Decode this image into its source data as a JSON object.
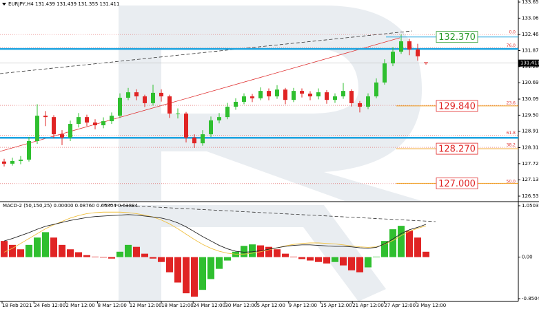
{
  "chart_data": {
    "type": "candlestick",
    "header": "EURJPY,H4  131.439 131.439 131.355 131.411",
    "ylim": [
      126.53,
      133.65
    ],
    "yticks": [
      {
        "value": 133.65,
        "label": "133.650"
      },
      {
        "value": 133.06,
        "label": "133.060"
      },
      {
        "value": 132.46,
        "label": "132.460"
      },
      {
        "value": 131.87,
        "label": "131.870"
      },
      {
        "value": 131.28,
        "label": "131.280"
      },
      {
        "value": 130.69,
        "label": "130.690"
      },
      {
        "value": 130.09,
        "label": "130.090"
      },
      {
        "value": 129.5,
        "label": "129.500"
      },
      {
        "value": 128.91,
        "label": "128.910"
      },
      {
        "value": 128.31,
        "label": "128.310"
      },
      {
        "value": 127.72,
        "label": "127.720"
      },
      {
        "value": 127.13,
        "label": "127.130"
      },
      {
        "value": 126.53,
        "label": "126.530"
      }
    ],
    "x_labels": [
      "18 Feb 2021",
      "24 Feb 12:00",
      "2 Mar 12:00",
      "8 Mar 12:00",
      "12 Mar 12:00",
      "18 Mar 12:00",
      "24 Mar 12:00",
      "30 Mar 12:00",
      "5 Apr 12:00",
      "9 Apr 12:00",
      "15 Apr 12:00",
      "21 Apr 12:00",
      "27 Apr 12:00",
      "3 May 12:00"
    ],
    "up_color": "#2fbf2f",
    "down_color": "#e02424",
    "ohlc": [
      [
        127.8,
        127.9,
        127.62,
        127.72
      ],
      [
        127.72,
        127.94,
        127.65,
        127.82
      ],
      [
        127.82,
        128.0,
        127.7,
        127.87
      ],
      [
        127.87,
        128.7,
        127.8,
        128.55
      ],
      [
        128.55,
        129.9,
        128.45,
        129.48
      ],
      [
        129.48,
        129.65,
        129.1,
        129.43
      ],
      [
        129.43,
        129.5,
        128.65,
        128.8
      ],
      [
        128.8,
        128.95,
        128.4,
        128.68
      ],
      [
        128.68,
        129.3,
        128.55,
        129.18
      ],
      [
        129.18,
        129.58,
        129.05,
        129.43
      ],
      [
        129.43,
        129.52,
        129.1,
        129.23
      ],
      [
        129.23,
        129.35,
        128.98,
        129.13
      ],
      [
        129.13,
        129.42,
        129.02,
        129.28
      ],
      [
        129.28,
        129.6,
        129.18,
        129.48
      ],
      [
        129.48,
        130.3,
        129.4,
        130.14
      ],
      [
        130.14,
        130.5,
        130.05,
        130.34
      ],
      [
        130.34,
        130.45,
        130.05,
        130.19
      ],
      [
        130.19,
        130.25,
        129.8,
        129.94
      ],
      [
        129.94,
        130.62,
        129.85,
        130.32
      ],
      [
        130.32,
        130.45,
        130.0,
        130.19
      ],
      [
        130.19,
        130.25,
        129.4,
        129.56
      ],
      [
        129.56,
        129.75,
        129.38,
        129.56
      ],
      [
        129.56,
        129.62,
        128.5,
        128.68
      ],
      [
        128.68,
        128.8,
        128.3,
        128.47
      ],
      [
        128.47,
        128.95,
        128.38,
        128.8
      ],
      [
        128.8,
        129.45,
        128.7,
        129.31
      ],
      [
        129.31,
        129.58,
        129.2,
        129.43
      ],
      [
        129.43,
        129.95,
        129.35,
        129.81
      ],
      [
        129.81,
        130.12,
        129.7,
        129.99
      ],
      [
        129.99,
        130.3,
        129.9,
        130.19
      ],
      [
        130.19,
        130.28,
        129.98,
        130.12
      ],
      [
        130.12,
        130.52,
        130.05,
        130.39
      ],
      [
        130.39,
        130.48,
        130.05,
        130.19
      ],
      [
        130.19,
        130.6,
        130.1,
        130.44
      ],
      [
        130.44,
        130.5,
        129.9,
        130.06
      ],
      [
        130.06,
        130.5,
        129.98,
        130.39
      ],
      [
        130.39,
        130.48,
        130.15,
        130.29
      ],
      [
        130.29,
        130.38,
        130.05,
        130.19
      ],
      [
        130.19,
        130.48,
        130.08,
        130.34
      ],
      [
        130.34,
        130.42,
        129.92,
        130.06
      ],
      [
        130.06,
        130.3,
        129.95,
        130.19
      ],
      [
        130.19,
        130.68,
        130.1,
        130.39
      ],
      [
        130.39,
        130.45,
        129.82,
        129.94
      ],
      [
        129.94,
        130.02,
        129.6,
        129.81
      ],
      [
        129.81,
        130.3,
        129.72,
        130.19
      ],
      [
        130.19,
        130.85,
        130.12,
        130.7
      ],
      [
        130.7,
        131.55,
        130.62,
        131.4
      ],
      [
        131.4,
        132.0,
        131.3,
        131.83
      ],
      [
        131.83,
        132.46,
        131.75,
        132.21
      ],
      [
        132.21,
        132.3,
        131.7,
        131.91
      ],
      [
        131.91,
        132.12,
        131.5,
        131.66
      ],
      [
        131.439,
        131.439,
        131.355,
        131.411
      ]
    ],
    "current_price": 131.411,
    "support_lines": [
      131.93,
      128.67
    ],
    "support_color": "#1ba3e0",
    "fib_levels": [
      {
        "label": "0.0",
        "price": 132.46
      },
      {
        "label": "76.0",
        "price": 131.97
      },
      {
        "label": "23.6",
        "price": 129.86
      },
      {
        "label": "61.8",
        "price": 128.76
      },
      {
        "label": "38.2",
        "price": 128.32
      },
      {
        "label": "50.0",
        "price": 126.99
      }
    ],
    "levels": [
      {
        "value": 132.37,
        "label": "132.370",
        "color": "#2a9a2a"
      },
      {
        "value": 129.84,
        "label": "129.840",
        "color": "#e02424"
      },
      {
        "value": 128.27,
        "label": "128.270",
        "color": "#e02424"
      },
      {
        "value": 127.0,
        "label": "127.000",
        "color": "#e02424"
      }
    ],
    "macd": {
      "label": "MACD-2 (50,150,25) 0.00000 0.08760 0.66804 0.63884",
      "ylim": [
        -0.85049,
        1.05035
      ],
      "yticks": [
        1.05035,
        {
          "value": 0,
          "label": "0.00"
        },
        -0.85049
      ],
      "histogram": [
        0.33,
        0.25,
        0.16,
        0.25,
        0.4,
        0.51,
        0.4,
        0.25,
        0.16,
        0.1,
        0.04,
        0.01,
        -0.01,
        -0.03,
        0.11,
        0.25,
        0.21,
        0.07,
        -0.03,
        -0.1,
        -0.31,
        -0.52,
        -0.74,
        -0.81,
        -0.67,
        -0.45,
        -0.24,
        -0.07,
        0.11,
        0.23,
        0.26,
        0.24,
        0.21,
        0.16,
        0.07,
        0.01,
        -0.04,
        -0.07,
        -0.1,
        -0.13,
        -0.1,
        -0.17,
        -0.27,
        -0.31,
        -0.21,
        0.01,
        0.33,
        0.57,
        0.64,
        0.54,
        0.4,
        0.11
      ],
      "main": [
        0.33,
        0.38,
        0.44,
        0.5,
        0.57,
        0.63,
        0.67,
        0.71,
        0.75,
        0.78,
        0.81,
        0.83,
        0.84,
        0.85,
        0.86,
        0.87,
        0.86,
        0.84,
        0.82,
        0.8,
        0.76,
        0.7,
        0.62,
        0.52,
        0.42,
        0.33,
        0.24,
        0.17,
        0.12,
        0.1,
        0.11,
        0.13,
        0.16,
        0.19,
        0.22,
        0.24,
        0.25,
        0.25,
        0.24,
        0.23,
        0.22,
        0.22,
        0.21,
        0.19,
        0.18,
        0.2,
        0.27,
        0.37,
        0.48,
        0.56,
        0.61,
        0.67
      ],
      "signal": [
        0.1,
        0.18,
        0.28,
        0.38,
        0.48,
        0.58,
        0.66,
        0.73,
        0.8,
        0.85,
        0.89,
        0.91,
        0.92,
        0.92,
        0.92,
        0.91,
        0.89,
        0.86,
        0.82,
        0.76,
        0.68,
        0.58,
        0.47,
        0.36,
        0.26,
        0.18,
        0.12,
        0.08,
        0.06,
        0.06,
        0.08,
        0.11,
        0.15,
        0.19,
        0.23,
        0.26,
        0.28,
        0.29,
        0.29,
        0.28,
        0.27,
        0.25,
        0.23,
        0.21,
        0.2,
        0.21,
        0.26,
        0.34,
        0.44,
        0.53,
        0.59,
        0.64
      ],
      "main_color": "#222222",
      "signal_color": "#f0c040"
    }
  }
}
